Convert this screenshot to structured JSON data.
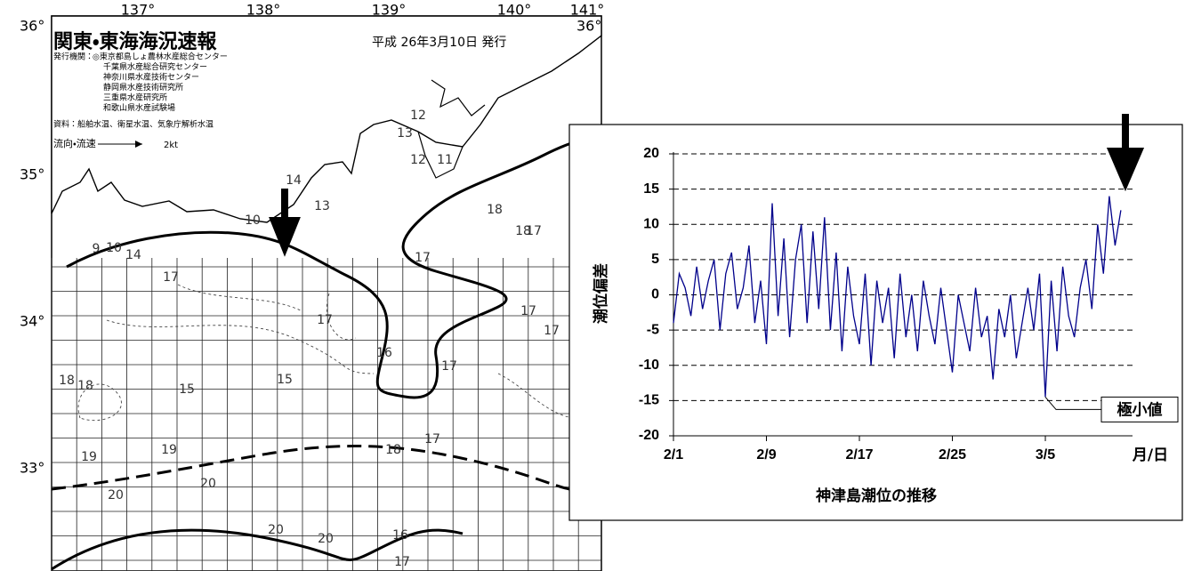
{
  "map": {
    "title": "関東・東海海況速報",
    "issued": "平成 26年3月10日 発行",
    "agency_label": "発行機関：",
    "agencies": [
      "◎東京都島しょ農林水産総合センター",
      "千葉県水産総合研究センター",
      "神奈川県水産技術センター",
      "静岡県水産技術研究所",
      "三重県水産研究所",
      "和歌山県水産試験場"
    ],
    "source": "資料：船舶水温、衛星水温、気象庁解析水温",
    "flow_label": "流向・流速",
    "flow_unit": "2kt",
    "longitudes": [
      "137°",
      "138°",
      "139°",
      "140°",
      "141°"
    ],
    "latitudes": [
      "36°",
      "35°",
      "34°",
      "33°"
    ],
    "lat_right": "36°",
    "isotherm_labels": [
      "9",
      "10",
      "14",
      "10",
      "14",
      "13",
      "13",
      "12",
      "11",
      "17",
      "17",
      "17",
      "17",
      "18",
      "17",
      "17",
      "18",
      "18",
      "15",
      "15",
      "16",
      "17",
      "17",
      "18",
      "19",
      "20",
      "19",
      "20",
      "20",
      "20",
      "16",
      "17",
      "18",
      "12"
    ]
  },
  "chart_data": {
    "type": "line",
    "title": "神津島潮位の推移",
    "y_label": "潮位偏差",
    "x_unit": "月/日",
    "annotation": "極小値",
    "color": "#00008b",
    "x": [
      0,
      0.5,
      1,
      1.5,
      2,
      2.5,
      3,
      3.5,
      4,
      4.5,
      5,
      5.5,
      6,
      6.5,
      7,
      7.5,
      8,
      8.5,
      9,
      9.5,
      10,
      10.5,
      11,
      11.5,
      12,
      12.5,
      13,
      13.5,
      14,
      14.5,
      15,
      15.5,
      16,
      16.5,
      17,
      17.5,
      18,
      18.5,
      19,
      19.5,
      20,
      20.5,
      21,
      21.5,
      22,
      22.5,
      23,
      23.5,
      24,
      24.5,
      25,
      25.5,
      26,
      26.5,
      27,
      27.5,
      28,
      28.5,
      29,
      29.5,
      30,
      30.5,
      31,
      31.5,
      32,
      32.5,
      33,
      33.5,
      34,
      34.5,
      35,
      35.5,
      36,
      36.5,
      37,
      37.5,
      38,
      38.5
    ],
    "values": [
      -4,
      3,
      1,
      -3,
      4,
      -2,
      2,
      5,
      -5,
      3,
      6,
      -2,
      1,
      7,
      -4,
      2,
      -7,
      13,
      -3,
      8,
      -6,
      5,
      10,
      -4,
      9,
      -2,
      11,
      -5,
      6,
      -8,
      4,
      -3,
      -7,
      3,
      -10,
      2,
      -4,
      1,
      -9,
      3,
      -6,
      0,
      -8,
      2,
      -3,
      -7,
      1,
      -5,
      -11,
      0,
      -4,
      -8,
      1,
      -6,
      -3,
      -12,
      -2,
      -6,
      0,
      -9,
      -4,
      1,
      -5,
      3,
      -14.5,
      2,
      -8,
      4,
      -3,
      -6,
      1,
      5,
      -2,
      10,
      3,
      14,
      7,
      12
    ],
    "xlim": [
      0,
      39.5
    ],
    "xticks": [
      {
        "value": 0,
        "label": "2/1"
      },
      {
        "value": 8,
        "label": "2/9"
      },
      {
        "value": 16,
        "label": "2/17"
      },
      {
        "value": 24,
        "label": "2/25"
      },
      {
        "value": 32,
        "label": "3/5"
      }
    ],
    "ylim": [
      -20,
      20
    ],
    "yticks": [
      -20,
      -15,
      -10,
      -5,
      0,
      5,
      10,
      15,
      20
    ],
    "grid": true
  }
}
